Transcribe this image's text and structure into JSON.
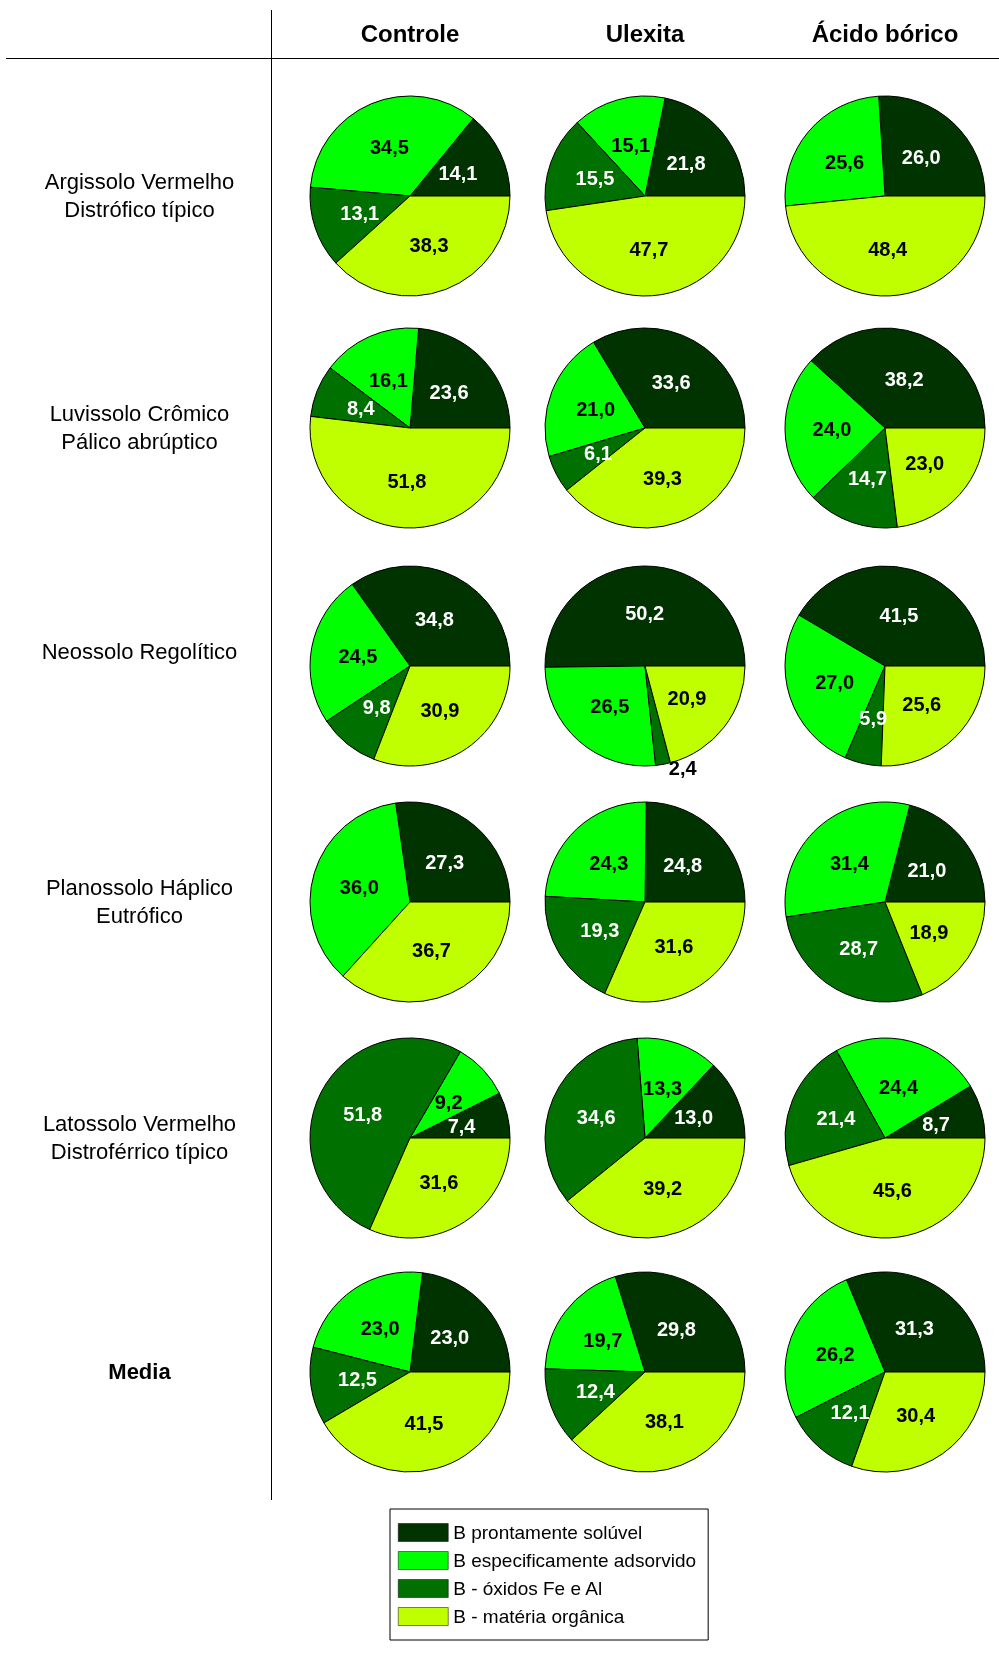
{
  "chart_data": [
    {
      "type": "pie",
      "title": "Controle",
      "ylabel": "Argissolo Vermelho Distrófico típico",
      "categories": [
        null,
        null,
        null,
        null
      ],
      "values": [
        14.1,
        34.5,
        13.1,
        38.3
      ],
      "colors": [
        "#003300",
        "#00ff00",
        "#007000",
        "#bfff00"
      ],
      "value_labels": [
        "14,1",
        "34,5",
        "13,1",
        "38,3"
      ]
    },
    {
      "type": "pie",
      "title": "Ulexita",
      "categories": [
        null,
        null,
        null,
        null
      ],
      "values": [
        21.8,
        15.1,
        15.5,
        47.7
      ],
      "colors": [
        "#003300",
        "#00ff00",
        "#007000",
        "#bfff00"
      ],
      "value_labels": [
        "21,8",
        "15,1",
        "15,5",
        "47,7"
      ]
    },
    {
      "type": "pie",
      "title": "Ácido bórico",
      "categories": [
        null,
        null,
        null
      ],
      "values": [
        26.0,
        25.6,
        48.4
      ],
      "colors": [
        "#003300",
        "#00ff00",
        "#bfff00"
      ],
      "value_labels": [
        "26,0",
        "25,6",
        "48,4"
      ]
    },
    {
      "type": "pie",
      "ylabel": "Luvissolo Crômico Pálico abrúptico",
      "categories": [
        null,
        null,
        null,
        null
      ],
      "values": [
        23.6,
        16.1,
        8.4,
        51.8
      ],
      "colors": [
        "#003300",
        "#00ff00",
        "#007000",
        "#bfff00"
      ],
      "value_labels": [
        "23,6",
        "16,1",
        "8,4",
        "51,8"
      ]
    },
    {
      "type": "pie",
      "categories": [
        null,
        null,
        null,
        null
      ],
      "values": [
        33.6,
        21.0,
        6.1,
        39.3
      ],
      "colors": [
        "#003300",
        "#00ff00",
        "#007000",
        "#bfff00"
      ],
      "value_labels": [
        "33,6",
        "21,0",
        "6,1",
        "39,3"
      ]
    },
    {
      "type": "pie",
      "categories": [
        null,
        null,
        null,
        null
      ],
      "values": [
        38.2,
        24.0,
        14.7,
        23.0
      ],
      "colors": [
        "#003300",
        "#00ff00",
        "#007000",
        "#bfff00"
      ],
      "value_labels": [
        "38,2",
        "24,0",
        "14,7",
        "23,0"
      ]
    },
    {
      "type": "pie",
      "ylabel": "Neossolo Regolítico",
      "categories": [
        null,
        null,
        null,
        null
      ],
      "values": [
        34.8,
        24.5,
        9.8,
        30.9
      ],
      "colors": [
        "#003300",
        "#00ff00",
        "#007000",
        "#bfff00"
      ],
      "value_labels": [
        "34,8",
        "24,5",
        "9,8",
        "30,9"
      ]
    },
    {
      "type": "pie",
      "categories": [
        null,
        null,
        null,
        null
      ],
      "values": [
        50.2,
        26.5,
        2.4,
        20.9
      ],
      "colors": [
        "#003300",
        "#00ff00",
        "#007000",
        "#bfff00"
      ],
      "value_labels": [
        "50,2",
        "26,5",
        "2,4",
        "20,9"
      ]
    },
    {
      "type": "pie",
      "categories": [
        null,
        null,
        null,
        null
      ],
      "values": [
        41.5,
        27.0,
        5.9,
        25.6
      ],
      "colors": [
        "#003300",
        "#00ff00",
        "#007000",
        "#bfff00"
      ],
      "value_labels": [
        "41,5",
        "27,0",
        "5,9",
        "25,6"
      ]
    },
    {
      "type": "pie",
      "ylabel": "Planossolo Háplico Eutrófico",
      "categories": [
        null,
        null,
        null
      ],
      "values": [
        27.3,
        36.0,
        36.7
      ],
      "colors": [
        "#003300",
        "#00ff00",
        "#bfff00"
      ],
      "value_labels": [
        "27,3",
        "36,0",
        "36,7"
      ]
    },
    {
      "type": "pie",
      "categories": [
        null,
        null,
        null,
        null
      ],
      "values": [
        24.8,
        24.3,
        19.3,
        31.6
      ],
      "colors": [
        "#003300",
        "#00ff00",
        "#007000",
        "#bfff00"
      ],
      "value_labels": [
        "24,8",
        "24,3",
        "19,3",
        "31,6"
      ]
    },
    {
      "type": "pie",
      "categories": [
        null,
        null,
        null,
        null
      ],
      "values": [
        21.0,
        31.4,
        28.7,
        18.9
      ],
      "colors": [
        "#003300",
        "#00ff00",
        "#007000",
        "#bfff00"
      ],
      "value_labels": [
        "21,0",
        "31,4",
        "28,7",
        "18,9"
      ]
    },
    {
      "type": "pie",
      "ylabel": "Latossolo Vermelho Distroférrico típico",
      "categories": [
        null,
        null,
        null,
        null
      ],
      "values": [
        7.4,
        9.2,
        51.8,
        31.6
      ],
      "colors": [
        "#003300",
        "#00ff00",
        "#007000",
        "#bfff00"
      ],
      "value_labels": [
        "7,4",
        "9,2",
        "51,8",
        "31,6"
      ]
    },
    {
      "type": "pie",
      "categories": [
        null,
        null,
        null,
        null
      ],
      "values": [
        13.0,
        13.3,
        34.6,
        39.2
      ],
      "colors": [
        "#003300",
        "#00ff00",
        "#007000",
        "#bfff00"
      ],
      "value_labels": [
        "13,0",
        "13,3",
        "34,6",
        "39,2"
      ]
    },
    {
      "type": "pie",
      "categories": [
        null,
        null,
        null,
        null
      ],
      "values": [
        8.7,
        24.4,
        21.4,
        45.6
      ],
      "colors": [
        "#003300",
        "#00ff00",
        "#007000",
        "#bfff00"
      ],
      "value_labels": [
        "8,7",
        "24,4",
        "21,4",
        "45,6"
      ]
    },
    {
      "type": "pie",
      "ylabel": "Media",
      "categories": [
        null,
        null,
        null,
        null
      ],
      "values": [
        23.0,
        23.0,
        12.5,
        41.5
      ],
      "colors": [
        "#003300",
        "#00ff00",
        "#007000",
        "#bfff00"
      ],
      "value_labels": [
        "23,0",
        "23,0",
        "12,5",
        "41,5"
      ]
    },
    {
      "type": "pie",
      "categories": [
        "B prontamente solúvel",
        "B especificamente adsorvido",
        "B - óxidos Fe e Al",
        "B - matéria orgânica"
      ],
      "values": [
        29.8,
        19.7,
        12.4,
        38.1
      ],
      "colors": [
        "#003300",
        "#00ff00",
        "#007000",
        "#bfff00"
      ],
      "value_labels": [
        "29,8",
        "19,7",
        "12,4",
        "38,1"
      ],
      "legend": "bottom"
    },
    {
      "type": "pie",
      "categories": [
        null,
        null,
        null,
        null
      ],
      "values": [
        31.3,
        26.2,
        12.1,
        30.4
      ],
      "colors": [
        "#003300",
        "#00ff00",
        "#007000",
        "#bfff00"
      ],
      "value_labels": [
        "31,3",
        "26,2",
        "12,1",
        "30,4"
      ]
    }
  ]
}
